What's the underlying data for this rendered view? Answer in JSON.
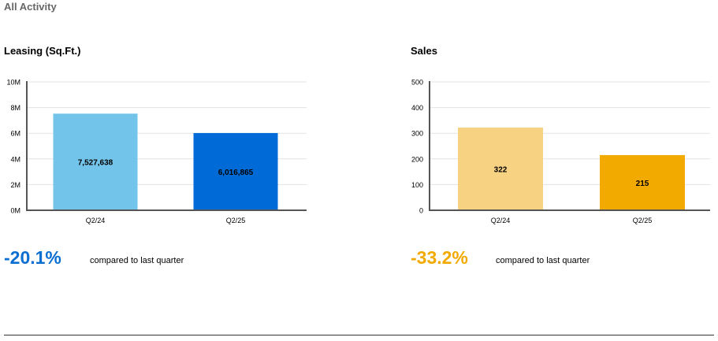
{
  "page_title": "All Activity",
  "chart_data": [
    {
      "type": "bar",
      "title": "Leasing (Sq.Ft.)",
      "categories": [
        "Q2/24",
        "Q2/25"
      ],
      "values": [
        7527638,
        6016865
      ],
      "value_labels": [
        "7,527,638",
        "6,016,865"
      ],
      "ylim": [
        0,
        10000000
      ],
      "yticks": [
        0,
        2000000,
        4000000,
        6000000,
        8000000,
        10000000
      ],
      "ytick_labels": [
        "0M",
        "2M",
        "4M",
        "6M",
        "8M",
        "10M"
      ],
      "colors": [
        "#72c4ea",
        "#006bd6"
      ],
      "grid": true,
      "change": "-20.1%",
      "change_color": "#0b6fd1",
      "change_note": "compared to last quarter"
    },
    {
      "type": "bar",
      "title": "Sales",
      "categories": [
        "Q2/24",
        "Q2/25"
      ],
      "values": [
        322,
        215
      ],
      "value_labels": [
        "322",
        "215"
      ],
      "ylim": [
        0,
        500
      ],
      "yticks": [
        0,
        100,
        200,
        300,
        400,
        500
      ],
      "ytick_labels": [
        "0",
        "100",
        "200",
        "300",
        "400",
        "500"
      ],
      "colors": [
        "#f6d282",
        "#f2a900"
      ],
      "grid": true,
      "change": "-33.2%",
      "change_color": "#f2a900",
      "change_note": "compared to last quarter"
    }
  ]
}
